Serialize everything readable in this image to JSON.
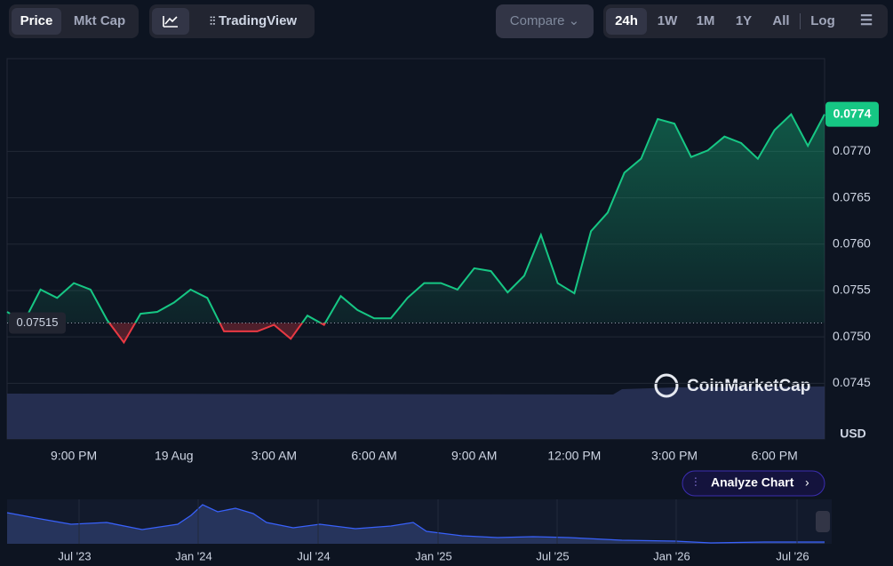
{
  "toolbar": {
    "price": "Price",
    "mkt_cap": "Mkt Cap",
    "tradingview": "TradingView",
    "compare": "Compare",
    "ranges": [
      "24h",
      "1W",
      "1M",
      "1Y",
      "All"
    ],
    "log": "Log"
  },
  "chart_data": {
    "type": "line",
    "categories": [
      null,
      null,
      null,
      null,
      "9:00 PM",
      null,
      null,
      null,
      null,
      null,
      "19 Aug",
      null,
      null,
      null,
      null,
      null,
      "3:00 AM",
      null,
      null,
      null,
      null,
      null,
      "6:00 AM",
      null,
      null,
      null,
      null,
      null,
      "9:00 AM",
      null,
      null,
      null,
      null,
      null,
      "12:00 PM",
      null,
      null,
      null,
      null,
      null,
      "3:00 PM",
      null,
      null,
      null,
      null,
      null,
      "6:00 PM",
      null,
      null,
      null
    ],
    "values": [
      0.07527,
      0.07516,
      0.07551,
      0.07542,
      0.07558,
      0.07551,
      0.07518,
      0.07494,
      0.07525,
      0.07527,
      0.07537,
      0.07551,
      0.07542,
      0.07506,
      0.07506,
      0.07506,
      0.07513,
      0.07498,
      0.07523,
      0.07513,
      0.07544,
      0.07529,
      0.0752,
      0.0752,
      0.07542,
      0.07558,
      0.07558,
      0.07551,
      0.07574,
      0.07571,
      0.07548,
      0.07566,
      0.0761,
      0.07558,
      0.07547,
      0.07614,
      0.07634,
      0.07677,
      0.07692,
      0.07735,
      0.0773,
      0.07694,
      0.07701,
      0.07716,
      0.07709,
      0.07692,
      0.07723,
      0.0774,
      0.07706,
      0.0774
    ],
    "baseline": 0.07515,
    "up_color": "#16c784",
    "down_color": "#ea3943",
    "ylim": [
      0.0739,
      0.078
    ],
    "yticks": [
      0.0745,
      {
        "value": 0.075,
        "label": "0.0750"
      },
      0.0755,
      {
        "value": 0.076,
        "label": "0.0760"
      },
      0.0765,
      {
        "value": 0.077,
        "label": "0.0770"
      }
    ],
    "y_unit": "USD",
    "grid": true
  },
  "watermark": "CoinMarketCap",
  "analyze": "Analyze Chart",
  "navigator": {
    "labels": [
      "Jul '23",
      "Jan '24",
      "Jul '24",
      "Jan '25",
      "Jul '25",
      "Jan '26",
      "Jul '26"
    ]
  }
}
